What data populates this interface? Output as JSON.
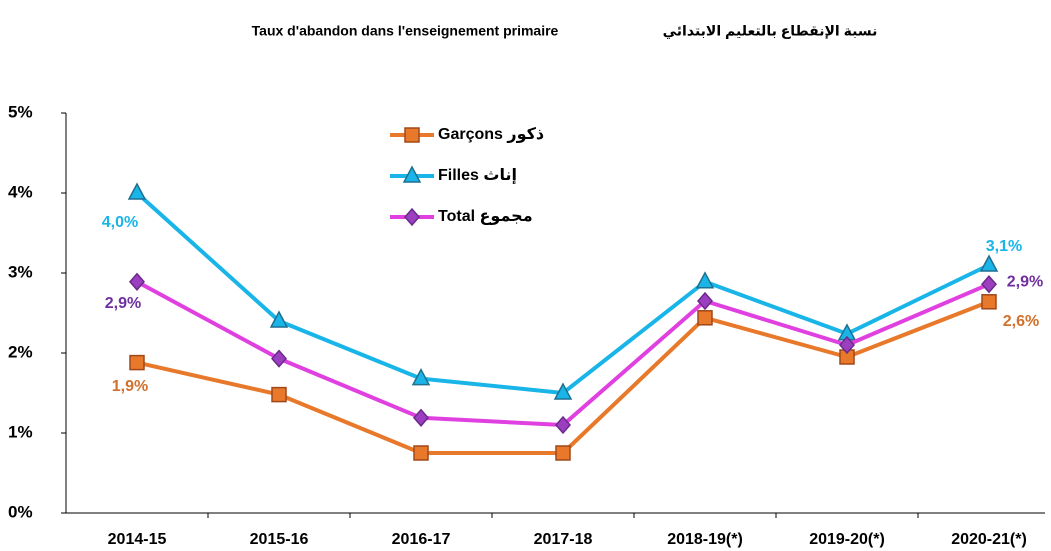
{
  "chart_data": {
    "type": "line",
    "title": "Taux d'abandon dans l'enseignement primaire",
    "subtitle": "نسبة الإنقطاع بالتعليم الابتدائي",
    "categories": [
      "2014-15",
      "2015-16",
      "2016-17",
      "2017-18",
      "2018-19(*)",
      "2019-20(*)",
      "2020-21(*)"
    ],
    "series": [
      {
        "name": "Garçons ذكور",
        "color": "#e8782a",
        "label_color": "#d2702c",
        "values": [
          1.88,
          1.48,
          0.75,
          0.75,
          2.44,
          1.95,
          2.64
        ],
        "value_labels": [
          "1,9%",
          null,
          null,
          null,
          null,
          null,
          "2,6%"
        ]
      },
      {
        "name": "Filles إناث",
        "color": "#19b5e8",
        "label_color": "#19b5e8",
        "values": [
          4.0,
          2.4,
          1.68,
          1.5,
          2.89,
          2.24,
          3.1
        ],
        "value_labels": [
          "4,0%",
          null,
          null,
          null,
          null,
          null,
          "3,1%"
        ]
      },
      {
        "name": "Total مجموع",
        "color": "#e040e0",
        "label_color": "#7030a0",
        "values": [
          2.89,
          1.93,
          1.19,
          1.1,
          2.65,
          2.1,
          2.86
        ],
        "value_labels": [
          "2,9%",
          null,
          null,
          null,
          null,
          null,
          "2,9%"
        ]
      }
    ],
    "ylim": [
      0,
      5
    ],
    "yticks": [
      {
        "value": 0,
        "label": "0%"
      },
      {
        "value": 1,
        "label": "1%"
      },
      {
        "value": 2,
        "label": "2%"
      },
      {
        "value": 3,
        "label": "3%"
      },
      {
        "value": 4,
        "label": "4%"
      },
      {
        "value": 5,
        "label": "5%"
      }
    ],
    "grid": false
  }
}
